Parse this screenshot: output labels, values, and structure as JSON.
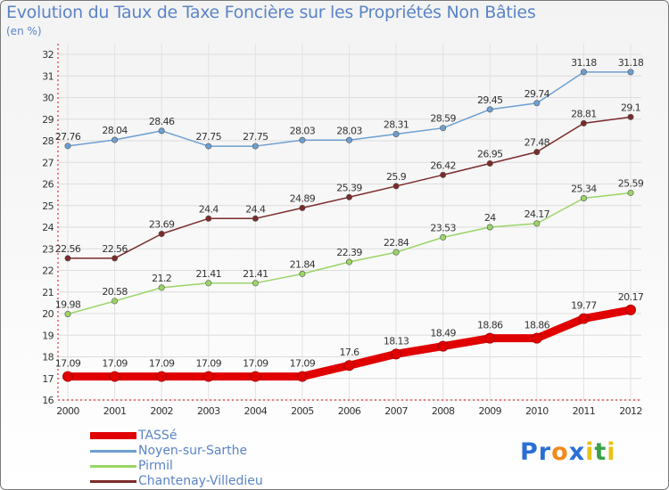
{
  "title": "Evolution du Taux de Taxe Foncière sur les Propriétés Non Bâties",
  "unit": "(en %)",
  "logo": {
    "text": "Proxiti",
    "letters": [
      {
        "ch": "P",
        "color": "#2a6fd6"
      },
      {
        "ch": "r",
        "color": "#2a6fd6"
      },
      {
        "ch": "o",
        "color": "#f08a1c"
      },
      {
        "ch": "x",
        "color": "#2a6fd6"
      },
      {
        "ch": "i",
        "color": "#e8c31a"
      },
      {
        "ch": "t",
        "color": "#3aa04a"
      },
      {
        "ch": "i",
        "color": "#e8c31a"
      }
    ]
  },
  "chart_data": {
    "type": "line",
    "x": [
      "2000",
      "2001",
      "2002",
      "2003",
      "2004",
      "2005",
      "2006",
      "2007",
      "2008",
      "2009",
      "2010",
      "2011",
      "2012"
    ],
    "ylim": [
      16,
      32
    ],
    "yticks": [
      "16",
      "17",
      "18",
      "19",
      "20",
      "21",
      "22",
      "23",
      "24",
      "25",
      "26",
      "27",
      "28",
      "29",
      "30",
      "31",
      "32"
    ],
    "grid": true,
    "legend_position": "bottom-left",
    "series": [
      {
        "name": "TASSé",
        "color": "#e00000",
        "values": [
          17.09,
          17.09,
          17.09,
          17.09,
          17.09,
          17.09,
          17.6,
          18.13,
          18.49,
          18.86,
          18.86,
          19.77,
          20.17
        ],
        "labels": [
          "17.09",
          "17.09",
          "17.09",
          "17.09",
          "17.09",
          "17.09",
          "17.6",
          "18.13",
          "18.49",
          "18.86",
          "18.86",
          "19.77",
          "20.17"
        ]
      },
      {
        "name": "Noyen-sur-Sarthe",
        "color": "#6d9fd1",
        "values": [
          27.76,
          28.04,
          28.46,
          27.75,
          27.75,
          28.03,
          28.03,
          28.31,
          28.59,
          29.45,
          29.74,
          31.18,
          31.18
        ],
        "labels": [
          "27.76",
          "28.04",
          "28.46",
          "27.75",
          "27.75",
          "28.03",
          "28.03",
          "28.31",
          "28.59",
          "29.45",
          "29.74",
          "31.18",
          "31.18"
        ]
      },
      {
        "name": "Pirmil",
        "color": "#9ad567",
        "values": [
          19.98,
          20.58,
          21.2,
          21.41,
          21.41,
          21.84,
          22.39,
          22.84,
          23.53,
          24,
          24.17,
          25.34,
          25.59
        ],
        "labels": [
          "19.98",
          "20.58",
          "21.2",
          "21.41",
          "21.41",
          "21.84",
          "22.39",
          "22.84",
          "23.53",
          "24",
          "24.17",
          "25.34",
          "25.59"
        ]
      },
      {
        "name": "Chantenay-Villedieu",
        "color": "#7b2b2b",
        "values": [
          22.56,
          22.56,
          23.69,
          24.4,
          24.4,
          24.89,
          25.39,
          25.9,
          26.42,
          26.95,
          27.48,
          28.81,
          29.1
        ],
        "labels": [
          "22.56",
          "22.56",
          "23.69",
          "24.4",
          "24.4",
          "24.89",
          "25.39",
          "25.9",
          "26.42",
          "26.95",
          "27.48",
          "28.81",
          "29.1"
        ]
      }
    ]
  }
}
